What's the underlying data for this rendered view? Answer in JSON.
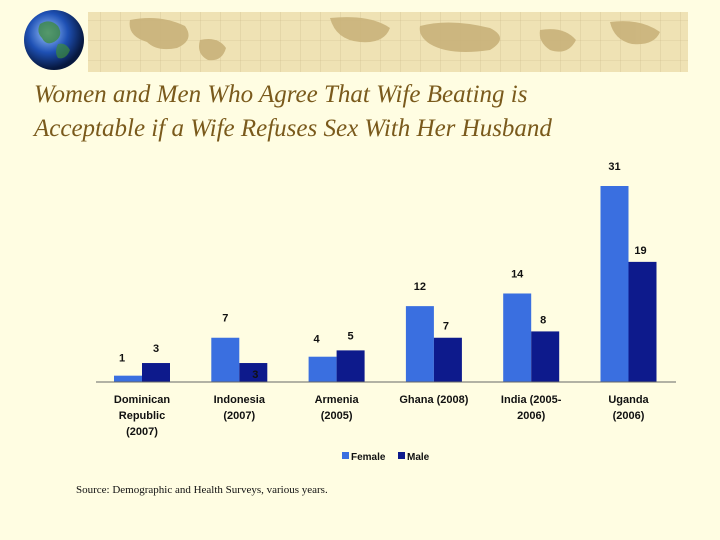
{
  "slide": {
    "title_line1": "Women and Men Who Agree That Wife Beating is",
    "title_line2": "Acceptable if a Wife Refuses Sex With Her Husband",
    "source": "Source: Demographic and Health Surveys, various years.",
    "banner_icon": "globe-icon",
    "colors": {
      "background": "#fffde2",
      "title": "#7a5a1c"
    }
  },
  "chart_data": {
    "type": "bar",
    "title": "",
    "xlabel": "",
    "ylabel": "",
    "ylim": [
      0,
      31
    ],
    "grid": false,
    "legend_position": "bottom",
    "categories": [
      [
        "Dominican",
        "Republic",
        "(2007)"
      ],
      [
        "Indonesia",
        "(2007)"
      ],
      [
        "Armenia",
        "(2005)"
      ],
      [
        "Ghana (2008)"
      ],
      [
        "India (2005-",
        "2006)"
      ],
      [
        "Uganda",
        "(2006)"
      ]
    ],
    "series": [
      {
        "name": "Female",
        "color": "#3a6fe0",
        "values": [
          1,
          7,
          4,
          12,
          14,
          31
        ]
      },
      {
        "name": "Male",
        "color": "#0d1a8c",
        "values": [
          3,
          3,
          5,
          7,
          8,
          19
        ]
      }
    ]
  }
}
